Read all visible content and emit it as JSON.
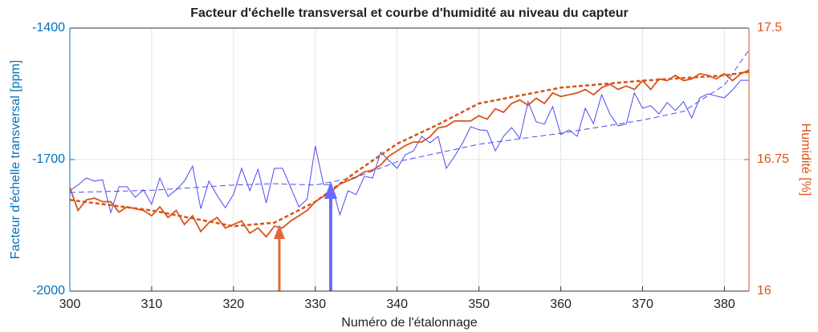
{
  "chart_data": {
    "type": "line",
    "title": "Facteur d'échelle transversal et courbe d'humidité au niveau du capteur",
    "xlabel": "Numéro de l'étalonnage",
    "ylabel": "Facteur d'échelle transversal [ppm]",
    "y2label": "Humidité [%]",
    "ylabel_color": "#0072bd",
    "y2label_color": "#d95319",
    "grid": true,
    "xlim": [
      300,
      383
    ],
    "xticks": [
      300,
      310,
      320,
      330,
      340,
      350,
      360,
      370,
      380
    ],
    "ylim": [
      -2000,
      -1400
    ],
    "yticks": [
      -2000,
      -1700,
      -1400
    ],
    "y2lim": [
      16,
      17.5
    ],
    "y2ticks": [
      16,
      16.75,
      17.5
    ],
    "x": [
      300,
      301,
      302,
      303,
      304,
      305,
      306,
      307,
      308,
      309,
      310,
      311,
      312,
      313,
      314,
      315,
      316,
      317,
      318,
      319,
      320,
      321,
      322,
      323,
      324,
      325,
      326,
      327,
      328,
      329,
      330,
      331,
      332,
      333,
      334,
      335,
      336,
      337,
      338,
      339,
      340,
      341,
      342,
      343,
      344,
      345,
      346,
      347,
      348,
      349,
      350,
      351,
      352,
      353,
      354,
      355,
      356,
      357,
      358,
      359,
      360,
      361,
      362,
      363,
      364,
      365,
      366,
      367,
      368,
      369,
      370,
      371,
      372,
      373,
      374,
      375,
      376,
      377,
      378,
      379,
      380,
      381,
      382,
      383
    ],
    "series": [
      {
        "color": "#4b4bf0",
        "axis": "y",
        "dash": false,
        "values": [
          -1771,
          -1758,
          -1742,
          -1749,
          -1746,
          -1821,
          -1762,
          -1762,
          -1786,
          -1769,
          -1802,
          -1742,
          -1784,
          -1769,
          -1749,
          -1715,
          -1812,
          -1749,
          -1782,
          -1810,
          -1779,
          -1720,
          -1771,
          -1722,
          -1799,
          -1720,
          -1720,
          -1764,
          -1808,
          -1790,
          -1669,
          -1757,
          -1758,
          -1826,
          -1771,
          -1780,
          -1738,
          -1742,
          -1683,
          -1702,
          -1720,
          -1689,
          -1680,
          -1647,
          -1662,
          -1647,
          -1720,
          -1693,
          -1662,
          -1625,
          -1632,
          -1634,
          -1680,
          -1647,
          -1627,
          -1652,
          -1568,
          -1614,
          -1619,
          -1579,
          -1643,
          -1632,
          -1647,
          -1583,
          -1618,
          -1552,
          -1596,
          -1623,
          -1619,
          -1548,
          -1583,
          -1577,
          -1596,
          -1570,
          -1588,
          -1568,
          -1605,
          -1559,
          -1550,
          -1555,
          -1559,
          -1541,
          -1519,
          -1519
        ]
      },
      {
        "color": "#d95319",
        "axis": "y2",
        "dash": false,
        "values": [
          16.59,
          16.46,
          16.52,
          16.53,
          16.51,
          16.51,
          16.45,
          16.48,
          16.47,
          16.46,
          16.43,
          16.48,
          16.42,
          16.46,
          16.38,
          16.43,
          16.34,
          16.39,
          16.42,
          16.36,
          16.38,
          16.4,
          16.33,
          16.36,
          16.31,
          16.37,
          16.36,
          16.4,
          16.43,
          16.46,
          16.51,
          16.54,
          16.57,
          16.61,
          16.63,
          16.65,
          16.68,
          16.69,
          16.72,
          16.77,
          16.8,
          16.83,
          16.85,
          16.85,
          16.88,
          16.93,
          16.94,
          16.97,
          16.97,
          16.97,
          17.0,
          16.98,
          17.04,
          17.02,
          17.07,
          17.09,
          17.06,
          17.1,
          17.07,
          17.13,
          17.11,
          17.12,
          17.13,
          17.15,
          17.12,
          17.16,
          17.18,
          17.15,
          17.17,
          17.15,
          17.2,
          17.15,
          17.21,
          17.2,
          17.23,
          17.2,
          17.21,
          17.24,
          17.23,
          17.21,
          17.24,
          17.2,
          17.24,
          17.26
        ]
      },
      {
        "color": "#4b4bf0",
        "axis": "y",
        "dash": true,
        "x": [
          300,
          310,
          320,
          325,
          330,
          335,
          340,
          350,
          360,
          370,
          375,
          380,
          383
        ],
        "values": [
          -1775,
          -1770,
          -1758,
          -1755,
          -1758,
          -1740,
          -1705,
          -1665,
          -1640,
          -1610,
          -1590,
          -1530,
          -1450
        ]
      },
      {
        "color": "#d95319",
        "axis": "y2",
        "dash": true,
        "x": [
          300,
          310,
          320,
          325,
          330,
          335,
          340,
          345,
          350,
          360,
          370,
          380,
          383
        ],
        "values": [
          16.52,
          16.46,
          16.37,
          16.39,
          16.51,
          16.68,
          16.84,
          16.95,
          17.07,
          17.16,
          17.2,
          17.23,
          17.25
        ]
      }
    ]
  }
}
